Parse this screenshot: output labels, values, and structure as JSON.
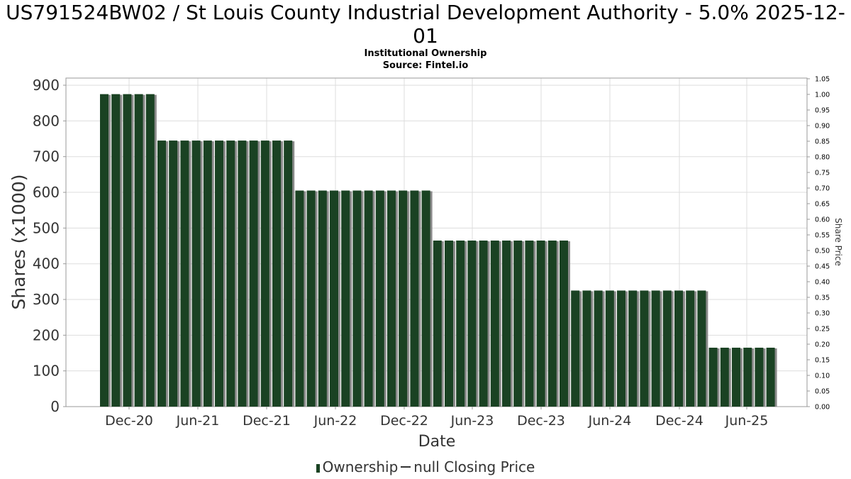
{
  "title_line1": "US791524BW02 / St Louis County Industrial Development Authority - 5.0% 2025-12-",
  "title_line2": "01",
  "subtitle_line1": "Institutional Ownership",
  "subtitle_line2": "Source: Fintel.io",
  "legend": {
    "ownership_label": "Ownership",
    "price_label": "null Closing Price"
  },
  "colors": {
    "bar": "#1a4223",
    "bar_shadow": "#8a8a8a",
    "grid": "#dddddd",
    "axis_text": "#333333"
  },
  "chart_data": {
    "type": "bar",
    "xlabel": "Date",
    "ylabel": "Shares (x1000)",
    "y2label": "Share Price",
    "ylim": [
      0,
      920
    ],
    "y_ticks": [
      0,
      100,
      200,
      300,
      400,
      500,
      600,
      700,
      800,
      900
    ],
    "y2lim": [
      0,
      1.05
    ],
    "y2_ticks": [
      "0.00",
      "0.05",
      "0.10",
      "0.15",
      "0.20",
      "0.25",
      "0.30",
      "0.35",
      "0.40",
      "0.45",
      "0.50",
      "0.55",
      "0.60",
      "0.65",
      "0.70",
      "0.75",
      "0.80",
      "0.85",
      "0.90",
      "0.95",
      "1.00",
      "1.05"
    ],
    "x_tick_labels": [
      "Dec-20",
      "Jun-21",
      "Dec-21",
      "Jun-22",
      "Dec-22",
      "Jun-23",
      "Dec-23",
      "Jun-24",
      "Dec-24",
      "Jun-25"
    ],
    "grid": true,
    "legend_position": "bottom",
    "series": [
      {
        "name": "Ownership",
        "values": [
          875,
          875,
          875,
          875,
          875,
          745,
          745,
          745,
          745,
          745,
          745,
          745,
          745,
          745,
          745,
          745,
          745,
          605,
          605,
          605,
          605,
          605,
          605,
          605,
          605,
          605,
          605,
          605,
          605,
          465,
          465,
          465,
          465,
          465,
          465,
          465,
          465,
          465,
          465,
          465,
          465,
          325,
          325,
          325,
          325,
          325,
          325,
          325,
          325,
          325,
          325,
          325,
          325,
          165,
          165,
          165,
          165,
          165,
          165
        ]
      }
    ]
  }
}
